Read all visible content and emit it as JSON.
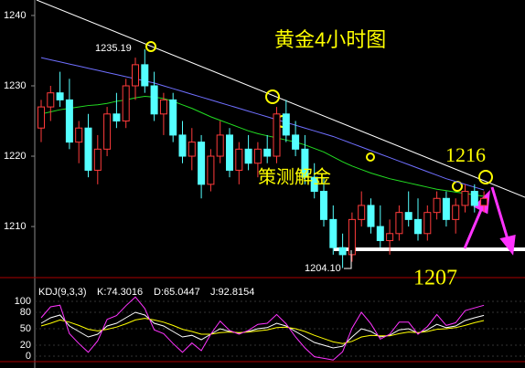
{
  "chart_data": [
    {
      "type": "candlestick",
      "title": "黄金4小时图",
      "annotations": [
        "策测解金",
        "1216",
        "1207",
        "1235.19",
        "1204.10"
      ],
      "up_color": "#ff3b3b",
      "down_color": "#54ffff",
      "ylim": [
        1203,
        1242.2
      ],
      "yticks": [
        1210,
        1220,
        1230,
        1240
      ],
      "open": [
        1224,
        1227,
        1229,
        1228,
        1222,
        1224,
        1218,
        1221,
        1226,
        1225,
        1230,
        1233,
        1230,
        1226,
        1228,
        1223,
        1220,
        1222,
        1216,
        1220,
        1223,
        1218,
        1221,
        1219,
        1221,
        1220,
        1226,
        1223,
        1221,
        1217,
        1215,
        1211,
        1207,
        1206,
        1211,
        1213,
        1210,
        1208,
        1209,
        1212,
        1211,
        1209,
        1212,
        1214,
        1211,
        1213,
        1215,
        1213
      ],
      "high": [
        1228,
        1230,
        1232,
        1231,
        1225,
        1226,
        1223,
        1227,
        1229,
        1231,
        1234,
        1235.19,
        1232,
        1229,
        1229,
        1225,
        1224,
        1223,
        1221,
        1225,
        1224,
        1222,
        1223,
        1222,
        1223,
        1227,
        1228,
        1225,
        1223,
        1219,
        1217,
        1213,
        1209,
        1212,
        1215,
        1214,
        1213,
        1211,
        1213,
        1215,
        1214,
        1213,
        1215,
        1215,
        1214,
        1216,
        1216,
        1215
      ],
      "low": [
        1222,
        1225,
        1227,
        1221,
        1219,
        1217,
        1216,
        1220,
        1224,
        1224,
        1228,
        1229,
        1225,
        1223,
        1222,
        1219,
        1218,
        1214,
        1215,
        1219,
        1217,
        1216,
        1218,
        1217,
        1219,
        1219,
        1222,
        1220,
        1216,
        1214,
        1210,
        1206,
        1204.1,
        1205,
        1210,
        1209,
        1207,
        1206,
        1208,
        1210,
        1208,
        1208,
        1211,
        1210,
        1209,
        1212,
        1212,
        1212
      ],
      "close": [
        1227,
        1229,
        1228,
        1222,
        1224,
        1218,
        1221,
        1226,
        1225,
        1230,
        1233,
        1230,
        1226,
        1228,
        1223,
        1220,
        1222,
        1216,
        1220,
        1223,
        1218,
        1221,
        1219,
        1221,
        1220,
        1226,
        1223,
        1221,
        1217,
        1215,
        1211,
        1207,
        1206,
        1211,
        1213,
        1210,
        1208,
        1209,
        1212,
        1211,
        1209,
        1212,
        1214,
        1211,
        1213,
        1215,
        1213,
        1214
      ],
      "series": [
        {
          "color": "#22dd22",
          "values": [
            1226,
            1226.3,
            1226.6,
            1226.8,
            1227,
            1227.2,
            1227.3,
            1227.5,
            1227.8,
            1228,
            1228.3,
            1228.5,
            1228.4,
            1228.2,
            1227.8,
            1227.3,
            1226.8,
            1226.2,
            1225.6,
            1225.1,
            1224.6,
            1224.1,
            1223.6,
            1223.2,
            1222.9,
            1222.6,
            1222.3,
            1222,
            1221.6,
            1221.1,
            1220.6,
            1219.9,
            1219.2,
            1218.6,
            1218.1,
            1217.6,
            1217.2,
            1216.8,
            1216.5,
            1216.2,
            1215.9,
            1215.6,
            1215.3,
            1215.1,
            1214.9,
            1214.7,
            1214.5,
            1214.3
          ]
        },
        {
          "color": "#6f6fff",
          "values": [
            1234,
            1233.7,
            1233.4,
            1233.1,
            1232.8,
            1232.5,
            1232.2,
            1231.9,
            1231.6,
            1231.3,
            1231,
            1230.7,
            1230.4,
            1230,
            1229.6,
            1229.2,
            1228.8,
            1228.4,
            1228,
            1227.6,
            1227.2,
            1226.8,
            1226.4,
            1226,
            1225.6,
            1225.2,
            1224.8,
            1224.4,
            1224,
            1223.6,
            1223.2,
            1222.8,
            1222.3,
            1221.8,
            1221.3,
            1220.8,
            1220.3,
            1219.8,
            1219.3,
            1218.8,
            1218.3,
            1217.8,
            1217.3,
            1216.8,
            1216.4,
            1216,
            1215.6,
            1215.2
          ]
        }
      ]
    },
    {
      "type": "line",
      "title": "KDJ(9,3,3)",
      "ylim": [
        -10,
        110
      ],
      "yticks": [
        0,
        20,
        50,
        80,
        100
      ],
      "series": [
        {
          "name": "K:74.3016",
          "color": "#ffffff",
          "values": [
            60,
            70,
            75,
            55,
            45,
            35,
            40,
            55,
            60,
            70,
            80,
            75,
            60,
            55,
            45,
            35,
            38,
            30,
            40,
            50,
            45,
            42,
            45,
            50,
            52,
            60,
            55,
            45,
            35,
            25,
            20,
            15,
            18,
            35,
            50,
            45,
            35,
            38,
            48,
            50,
            42,
            48,
            58,
            52,
            55,
            65,
            70,
            74.3016
          ]
        },
        {
          "name": "D:65.0447",
          "color": "#ffff00",
          "values": [
            55,
            60,
            66,
            62,
            56,
            49,
            46,
            49,
            53,
            59,
            66,
            69,
            66,
            62,
            56,
            49,
            45,
            40,
            40,
            43,
            44,
            43,
            44,
            46,
            48,
            52,
            53,
            50,
            45,
            38,
            32,
            26,
            23,
            27,
            35,
            38,
            37,
            37,
            41,
            44,
            43,
            45,
            49,
            50,
            52,
            56,
            61,
            65.0447
          ]
        },
        {
          "name": "J:92.8154",
          "color": "#ff33ff",
          "values": [
            70,
            90,
            93,
            41,
            23,
            7,
            28,
            67,
            74,
            92,
            108,
            87,
            48,
            41,
            23,
            7,
            24,
            10,
            40,
            64,
            47,
            40,
            47,
            58,
            60,
            76,
            59,
            35,
            15,
            -1,
            -4,
            -7,
            8,
            51,
            80,
            59,
            31,
            40,
            62,
            62,
            40,
            54,
            76,
            56,
            61,
            83,
            88,
            92.8154
          ]
        }
      ]
    }
  ]
}
